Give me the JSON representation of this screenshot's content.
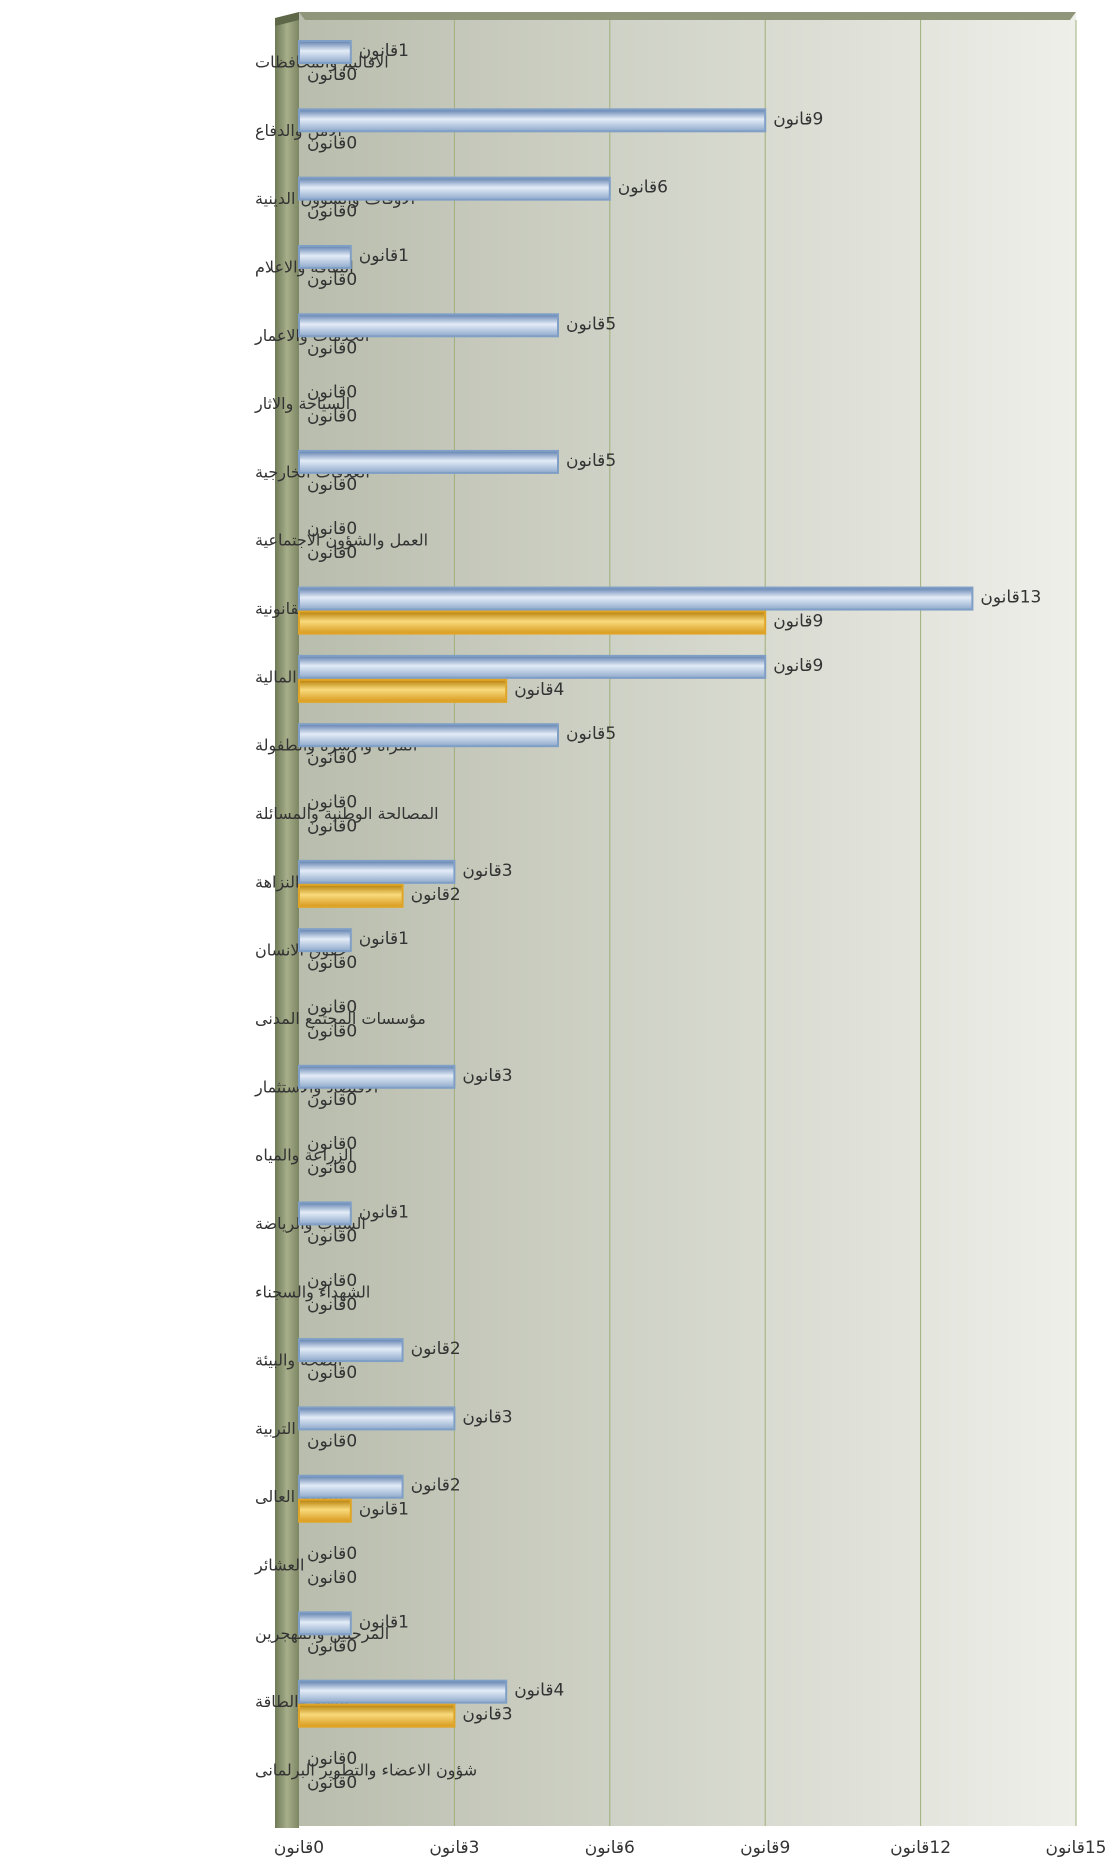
{
  "chart_data": {
    "type": "hbar",
    "categories": [
      "الاقاليم والمحافظات",
      "الامن والدفاع",
      "الاوقاف والشؤون الدينية",
      "الثقافة والاعلام",
      "الخدمات والاعمار",
      "السياحة والاثار",
      "العلاقات الخارجية",
      "العمل والشؤون الاجتماعية",
      "القانونية",
      "المالية",
      "المرأة والاسرة والطفولة",
      "المصالحة الوطنية والمسائلة",
      "النزاهة",
      "حقوق الانسان",
      "مؤسسات المجتمع المدنى",
      "الاقتصاد والاستثمار",
      "الزراعة والمياه",
      "الشباب والرياضة",
      "الشهداء والسجناء",
      "الصحة والبيئة",
      "التربية",
      "التعليم العالى",
      "العشائر",
      "المرحلين والمهجرين",
      "النفط والطاقة",
      "شؤون الاعضاء والتطوير البرلمانى"
    ],
    "series": [
      {
        "color": "#7f9fc6",
        "values": [
          1,
          9,
          6,
          1,
          5,
          0,
          5,
          0,
          13,
          9,
          5,
          0,
          3,
          1,
          0,
          3,
          0,
          1,
          0,
          2,
          3,
          2,
          0,
          1,
          4,
          0
        ],
        "value_labels": [
          "1قانون",
          "9قانون",
          "6قانون",
          "1قانون",
          "5قانون",
          "0قانون",
          "5قانون",
          "0قانون",
          "13قانون",
          "9قانون",
          "5قانون",
          "0قانون",
          "3قانون",
          "1قانون",
          "0قانون",
          "3قانون",
          "0قانون",
          "1قانون",
          "0قانون",
          "2قانون",
          "3قانون",
          "2قانون",
          "0قانون",
          "1قانون",
          "4قانون",
          "0قانون"
        ]
      },
      {
        "color": "#e0a526",
        "values": [
          0,
          0,
          0,
          0,
          0,
          0,
          0,
          0,
          9,
          4,
          0,
          0,
          2,
          0,
          0,
          0,
          0,
          0,
          0,
          0,
          0,
          1,
          0,
          0,
          3,
          0
        ],
        "value_labels": [
          "0قانون",
          "0قانون",
          "0قانون",
          "0قانون",
          "0قانون",
          "0قانون",
          "0قانون",
          "0قانون",
          "9قانون",
          "4قانون",
          "0قانون",
          "0قانون",
          "2قانون",
          "0قانون",
          "0قانون",
          "0قانون",
          "0قانون",
          "0قانون",
          "0قانون",
          "0قانون",
          "0قانون",
          "1قانون",
          "0قانون",
          "0قانون",
          "3قانون",
          "0قانون"
        ]
      }
    ],
    "xlim": [
      0,
      15
    ],
    "xticks": [
      {
        "value": 0,
        "label": "0قانون"
      },
      {
        "value": 3,
        "label": "3قانون"
      },
      {
        "value": 6,
        "label": "6قانون"
      },
      {
        "value": 9,
        "label": "9قانون"
      },
      {
        "value": 12,
        "label": "12قانون"
      },
      {
        "value": 15,
        "label": "15قانون"
      }
    ],
    "grid": true
  }
}
